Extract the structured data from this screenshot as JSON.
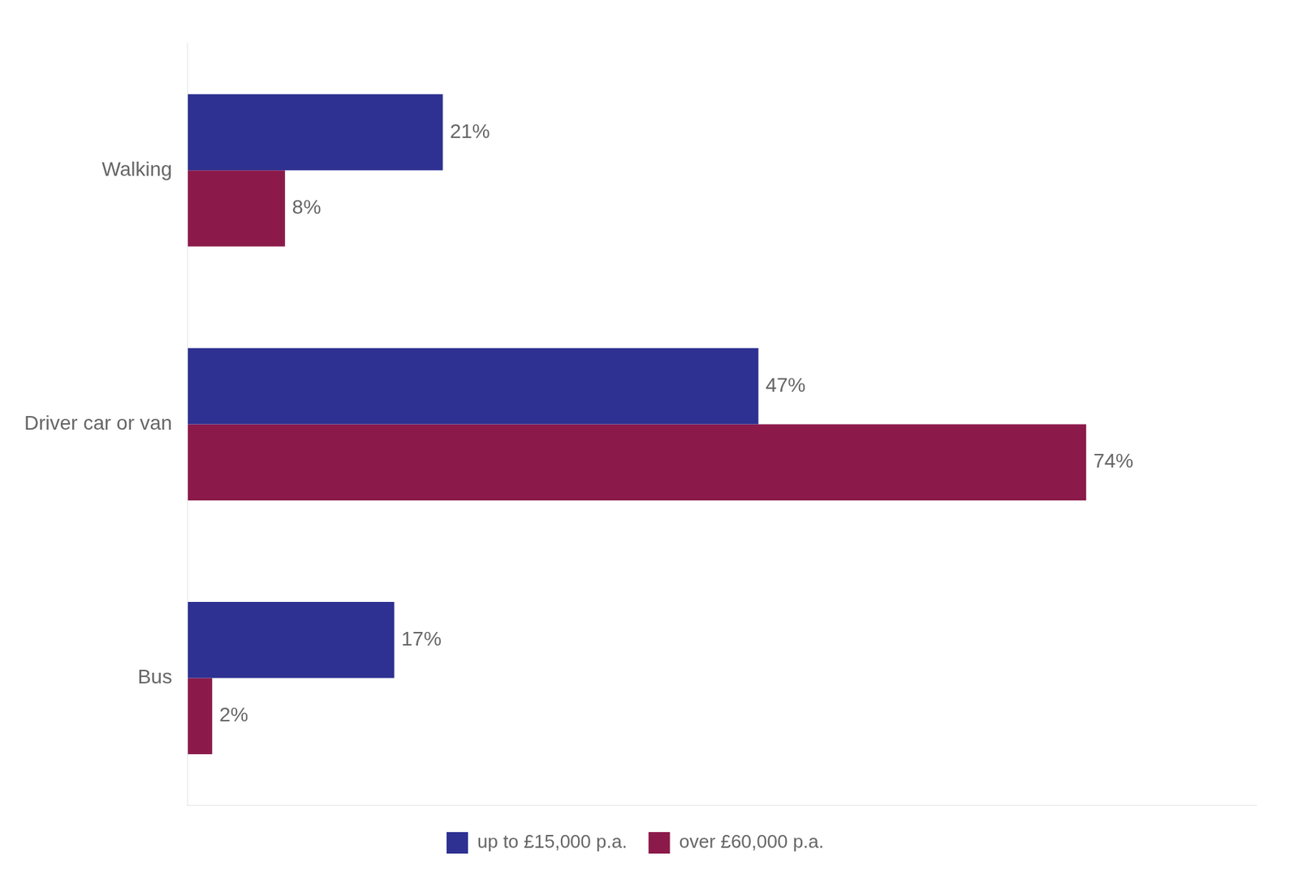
{
  "chart_data": {
    "type": "bar",
    "orientation": "horizontal",
    "categories": [
      "Walking",
      "Driver car or van",
      "Bus"
    ],
    "series": [
      {
        "name": "up to £15,000 p.a.",
        "color": "#2E3191",
        "values": [
          21,
          47,
          17
        ],
        "value_labels": [
          "21%",
          "47%",
          "17%"
        ]
      },
      {
        "name": "over £60,000 p.a.",
        "color": "#8B1A4A",
        "values": [
          8,
          74,
          2
        ],
        "value_labels": [
          "8%",
          "74%",
          "2%"
        ]
      }
    ],
    "xlim": [
      0,
      88
    ],
    "grid": false,
    "legend": "bottom",
    "data_labels": true,
    "tick_labels": "y"
  }
}
